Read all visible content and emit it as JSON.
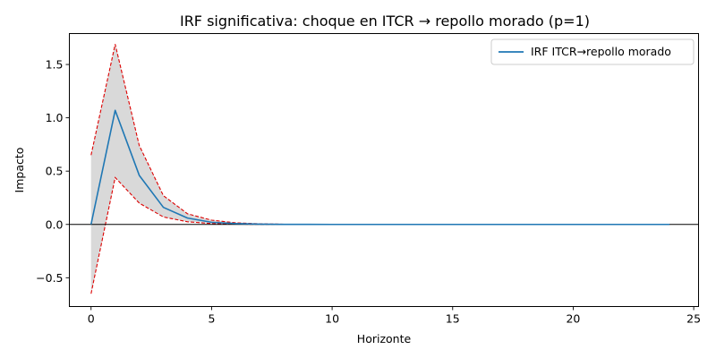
{
  "chart_data": {
    "type": "line",
    "title": "IRF significativa: choque en ITCR → repollo morado (p=1)",
    "xlabel": "Horizonte",
    "ylabel": "Impacto",
    "xlim": [
      -0.9,
      25.2
    ],
    "ylim": [
      -0.77,
      1.79
    ],
    "x_ticks": [
      0,
      5,
      10,
      15,
      20,
      25
    ],
    "y_ticks": [
      -0.5,
      0.0,
      0.5,
      1.0,
      1.5
    ],
    "x_tick_labels": [
      "0",
      "5",
      "10",
      "15",
      "20",
      "25"
    ],
    "y_tick_labels": [
      "−0.5",
      "0.0",
      "0.5",
      "1.0",
      "1.5"
    ],
    "grid": false,
    "legend_position": "top-right",
    "zero_line": 0,
    "x": [
      0,
      1,
      2,
      3,
      4,
      5,
      6,
      7,
      8,
      9,
      10,
      11,
      12,
      13,
      14,
      15,
      16,
      17,
      18,
      19,
      20,
      21,
      22,
      23,
      24
    ],
    "series": [
      {
        "name": "IRF ITCR→repollo morado",
        "color": "#1f77b4",
        "values": [
          0.0,
          1.07,
          0.46,
          0.16,
          0.06,
          0.02,
          0.008,
          0.003,
          0.001,
          0.0005,
          0.0002,
          0.0001,
          0,
          0,
          0,
          0,
          0,
          0,
          0,
          0,
          0,
          0,
          0,
          0,
          0
        ]
      }
    ],
    "band": {
      "fill": "#d9d9d9",
      "edge_color": "#dd0000",
      "upper": [
        0.65,
        1.69,
        0.74,
        0.27,
        0.1,
        0.04,
        0.015,
        0.006,
        0.002,
        0.001,
        0.0005,
        0.0002,
        0.0001,
        0,
        0,
        0,
        0,
        0,
        0,
        0,
        0,
        0,
        0,
        0,
        0
      ],
      "lower": [
        -0.65,
        0.44,
        0.2,
        0.07,
        0.025,
        0.008,
        0.003,
        0.001,
        0.0004,
        0.0002,
        0.0001,
        0,
        0,
        0,
        0,
        0,
        0,
        0,
        0,
        0,
        0,
        0,
        0,
        0,
        0
      ]
    }
  }
}
